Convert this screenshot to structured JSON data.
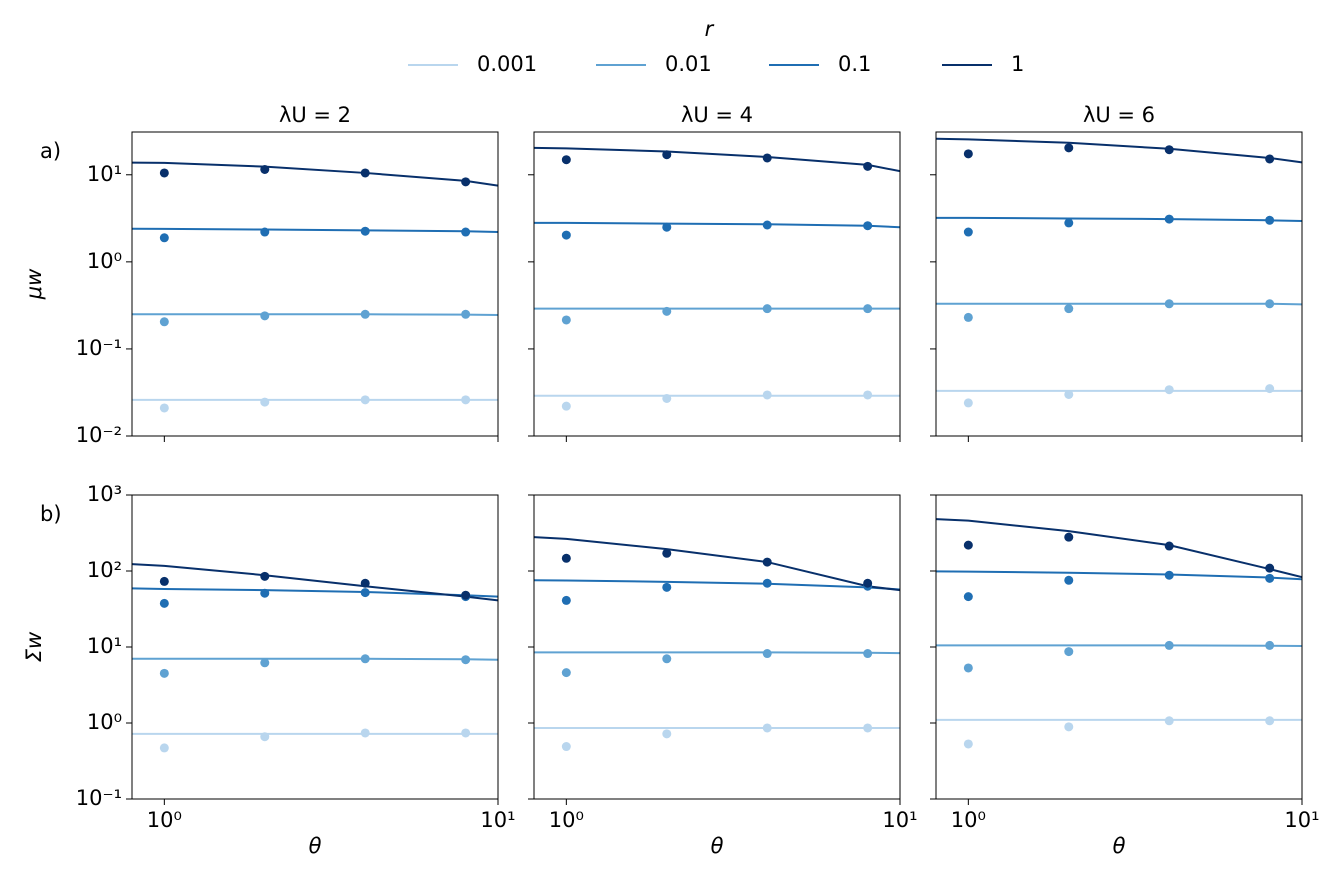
{
  "legend": {
    "title": "r",
    "position": "top",
    "entries": [
      {
        "name": "0.001",
        "color": "#b9d6ee"
      },
      {
        "name": "0.01",
        "color": "#5fa2d2"
      },
      {
        "name": "0.1",
        "color": "#1f6eb3"
      },
      {
        "name": "1",
        "color": "#08306b"
      }
    ]
  },
  "chart_data": [
    {
      "type": "line",
      "title": "λU = 2",
      "panel_label": "a)",
      "ylabel": "μw",
      "log_x": true,
      "log_y": true,
      "ytick_labels": true,
      "xtick_labels": false,
      "xlim": [
        0.8,
        10
      ],
      "ylim": [
        0.01,
        31
      ],
      "xticks": [
        {
          "value": 1,
          "label": "10⁰"
        },
        {
          "value": 10,
          "label": "10¹"
        }
      ],
      "yticks": [
        {
          "value": 0.01,
          "label": "10⁻²"
        },
        {
          "value": 0.1,
          "label": "10⁻¹"
        },
        {
          "value": 1,
          "label": "10⁰"
        },
        {
          "value": 10,
          "label": "10¹"
        }
      ],
      "x_fit": [
        0.8,
        1,
        2,
        4,
        8,
        10
      ],
      "x_points": [
        1,
        2,
        4,
        8
      ],
      "series": [
        {
          "color": "#b9d6ee",
          "fit": [
            0.026,
            0.026,
            0.026,
            0.026,
            0.026,
            0.026
          ],
          "points": [
            0.021,
            0.0245,
            0.026,
            0.026
          ]
        },
        {
          "color": "#5fa2d2",
          "fit": [
            0.25,
            0.25,
            0.25,
            0.25,
            0.248,
            0.245
          ],
          "points": [
            0.205,
            0.24,
            0.25,
            0.25
          ]
        },
        {
          "color": "#1f6eb3",
          "fit": [
            2.4,
            2.39,
            2.35,
            2.3,
            2.25,
            2.2
          ],
          "points": [
            1.89,
            2.2,
            2.25,
            2.2
          ]
        },
        {
          "color": "#08306b",
          "fit": [
            13.8,
            13.7,
            12.4,
            10.5,
            8.5,
            7.5
          ],
          "points": [
            10.5,
            11.5,
            10.5,
            8.3
          ]
        }
      ]
    },
    {
      "type": "line",
      "title": "λU = 4",
      "log_x": true,
      "log_y": true,
      "ytick_labels": false,
      "xtick_labels": false,
      "xlim": [
        0.8,
        10
      ],
      "ylim": [
        0.01,
        31
      ],
      "xticks": [
        {
          "value": 1,
          "label": "10⁰"
        },
        {
          "value": 10,
          "label": "10¹"
        }
      ],
      "yticks": [
        {
          "value": 0.01,
          "label": "10⁻²"
        },
        {
          "value": 0.1,
          "label": "10⁻¹"
        },
        {
          "value": 1,
          "label": "10⁰"
        },
        {
          "value": 10,
          "label": "10¹"
        }
      ],
      "x_fit": [
        0.8,
        1,
        2,
        4,
        8,
        10
      ],
      "x_points": [
        1,
        2,
        4,
        8
      ],
      "series": [
        {
          "color": "#b9d6ee",
          "fit": [
            0.029,
            0.029,
            0.029,
            0.029,
            0.029,
            0.029
          ],
          "points": [
            0.022,
            0.027,
            0.0296,
            0.0296
          ]
        },
        {
          "color": "#5fa2d2",
          "fit": [
            0.29,
            0.29,
            0.29,
            0.29,
            0.29,
            0.29
          ],
          "points": [
            0.215,
            0.27,
            0.29,
            0.29
          ]
        },
        {
          "color": "#1f6eb3",
          "fit": [
            2.8,
            2.8,
            2.75,
            2.7,
            2.6,
            2.5
          ],
          "points": [
            2.03,
            2.5,
            2.65,
            2.6
          ]
        },
        {
          "color": "#08306b",
          "fit": [
            20.4,
            20.1,
            18.5,
            16,
            13,
            11
          ],
          "points": [
            14.9,
            17,
            15.6,
            12.5
          ]
        }
      ]
    },
    {
      "type": "line",
      "title": "λU = 6",
      "log_x": true,
      "log_y": true,
      "ytick_labels": false,
      "xtick_labels": false,
      "xlim": [
        0.8,
        10
      ],
      "ylim": [
        0.01,
        31
      ],
      "xticks": [
        {
          "value": 1,
          "label": "10⁰"
        },
        {
          "value": 10,
          "label": "10¹"
        }
      ],
      "yticks": [
        {
          "value": 0.01,
          "label": "10⁻²"
        },
        {
          "value": 0.1,
          "label": "10⁻¹"
        },
        {
          "value": 1,
          "label": "10⁰"
        },
        {
          "value": 10,
          "label": "10¹"
        }
      ],
      "x_fit": [
        0.8,
        1,
        2,
        4,
        8,
        10
      ],
      "x_points": [
        1,
        2,
        4,
        8
      ],
      "series": [
        {
          "color": "#b9d6ee",
          "fit": [
            0.033,
            0.033,
            0.033,
            0.033,
            0.033,
            0.033
          ],
          "points": [
            0.024,
            0.03,
            0.034,
            0.035
          ]
        },
        {
          "color": "#5fa2d2",
          "fit": [
            0.33,
            0.33,
            0.33,
            0.33,
            0.33,
            0.325
          ],
          "points": [
            0.23,
            0.29,
            0.33,
            0.33
          ]
        },
        {
          "color": "#1f6eb3",
          "fit": [
            3.2,
            3.2,
            3.15,
            3.1,
            3.0,
            2.95
          ],
          "points": [
            2.2,
            2.8,
            3.1,
            3.0
          ]
        },
        {
          "color": "#08306b",
          "fit": [
            25.9,
            25.5,
            23.3,
            19.9,
            15.6,
            13.9
          ],
          "points": [
            17.4,
            20.4,
            19.4,
            15.2
          ]
        }
      ]
    },
    {
      "type": "line",
      "panel_label": "b)",
      "ylabel": "Σw",
      "xlabel": "θ",
      "log_x": true,
      "log_y": true,
      "ytick_labels": true,
      "xtick_labels": true,
      "xlim": [
        0.8,
        10
      ],
      "ylim": [
        0.1,
        1000
      ],
      "xticks": [
        {
          "value": 1,
          "label": "10⁰"
        },
        {
          "value": 10,
          "label": "10¹"
        }
      ],
      "yticks": [
        {
          "value": 0.1,
          "label": "10⁻¹"
        },
        {
          "value": 1,
          "label": "10⁰"
        },
        {
          "value": 10,
          "label": "10¹"
        },
        {
          "value": 100,
          "label": "10²"
        },
        {
          "value": 1000,
          "label": "10³"
        }
      ],
      "x_fit": [
        0.8,
        1,
        2,
        4,
        8,
        10
      ],
      "x_points": [
        1,
        2,
        4,
        8
      ],
      "series": [
        {
          "color": "#b9d6ee",
          "fit": [
            0.72,
            0.72,
            0.72,
            0.72,
            0.72,
            0.72
          ],
          "points": [
            0.47,
            0.66,
            0.74,
            0.74
          ]
        },
        {
          "color": "#5fa2d2",
          "fit": [
            7.0,
            7.0,
            7.0,
            7.0,
            6.9,
            6.8
          ],
          "points": [
            4.5,
            6.2,
            7.0,
            6.8
          ]
        },
        {
          "color": "#1f6eb3",
          "fit": [
            59,
            58,
            56,
            53,
            48,
            46
          ],
          "points": [
            37.5,
            51,
            52,
            46
          ]
        },
        {
          "color": "#08306b",
          "fit": [
            123,
            117,
            88,
            63,
            46,
            41
          ],
          "points": [
            73,
            85,
            69,
            48
          ]
        }
      ]
    },
    {
      "type": "line",
      "xlabel": "θ",
      "log_x": true,
      "log_y": true,
      "ytick_labels": false,
      "xtick_labels": true,
      "xlim": [
        0.8,
        10
      ],
      "ylim": [
        0.1,
        1000
      ],
      "xticks": [
        {
          "value": 1,
          "label": "10⁰"
        },
        {
          "value": 10,
          "label": "10¹"
        }
      ],
      "yticks": [
        {
          "value": 0.1,
          "label": "10⁻¹"
        },
        {
          "value": 1,
          "label": "10⁰"
        },
        {
          "value": 10,
          "label": "10¹"
        },
        {
          "value": 100,
          "label": "10²"
        },
        {
          "value": 1000,
          "label": "10³"
        }
      ],
      "x_fit": [
        0.8,
        1,
        2,
        4,
        8,
        10
      ],
      "x_points": [
        1,
        2,
        4,
        8
      ],
      "series": [
        {
          "color": "#b9d6ee",
          "fit": [
            0.86,
            0.86,
            0.86,
            0.86,
            0.86,
            0.86
          ],
          "points": [
            0.49,
            0.72,
            0.86,
            0.86
          ]
        },
        {
          "color": "#5fa2d2",
          "fit": [
            8.5,
            8.5,
            8.5,
            8.5,
            8.4,
            8.3
          ],
          "points": [
            4.6,
            7.0,
            8.2,
            8.2
          ]
        },
        {
          "color": "#1f6eb3",
          "fit": [
            75.5,
            75,
            72,
            68,
            61,
            57
          ],
          "points": [
            41,
            61,
            69,
            63
          ]
        },
        {
          "color": "#08306b",
          "fit": [
            279,
            265,
            194,
            131,
            63,
            56
          ],
          "points": [
            147,
            171,
            131,
            69
          ]
        }
      ]
    },
    {
      "type": "line",
      "xlabel": "θ",
      "log_x": true,
      "log_y": true,
      "ytick_labels": false,
      "xtick_labels": true,
      "xlim": [
        0.8,
        10
      ],
      "ylim": [
        0.1,
        1000
      ],
      "xticks": [
        {
          "value": 1,
          "label": "10⁰"
        },
        {
          "value": 10,
          "label": "10¹"
        }
      ],
      "yticks": [
        {
          "value": 0.1,
          "label": "10⁻¹"
        },
        {
          "value": 1,
          "label": "10⁰"
        },
        {
          "value": 10,
          "label": "10¹"
        },
        {
          "value": 100,
          "label": "10²"
        },
        {
          "value": 1000,
          "label": "10³"
        }
      ],
      "x_fit": [
        0.8,
        1,
        2,
        4,
        8,
        10
      ],
      "x_points": [
        1,
        2,
        4,
        8
      ],
      "series": [
        {
          "color": "#b9d6ee",
          "fit": [
            1.1,
            1.1,
            1.1,
            1.1,
            1.1,
            1.1
          ],
          "points": [
            0.53,
            0.89,
            1.07,
            1.07
          ]
        },
        {
          "color": "#5fa2d2",
          "fit": [
            10.5,
            10.5,
            10.5,
            10.5,
            10.4,
            10.3
          ],
          "points": [
            5.3,
            8.7,
            10.5,
            10.5
          ]
        },
        {
          "color": "#1f6eb3",
          "fit": [
            99,
            98,
            95,
            90,
            82,
            78
          ],
          "points": [
            46,
            75.5,
            88,
            80
          ]
        },
        {
          "color": "#08306b",
          "fit": [
            482,
            460,
            335,
            219,
            106,
            83
          ],
          "points": [
            219,
            279,
            213,
            109
          ]
        }
      ]
    }
  ]
}
